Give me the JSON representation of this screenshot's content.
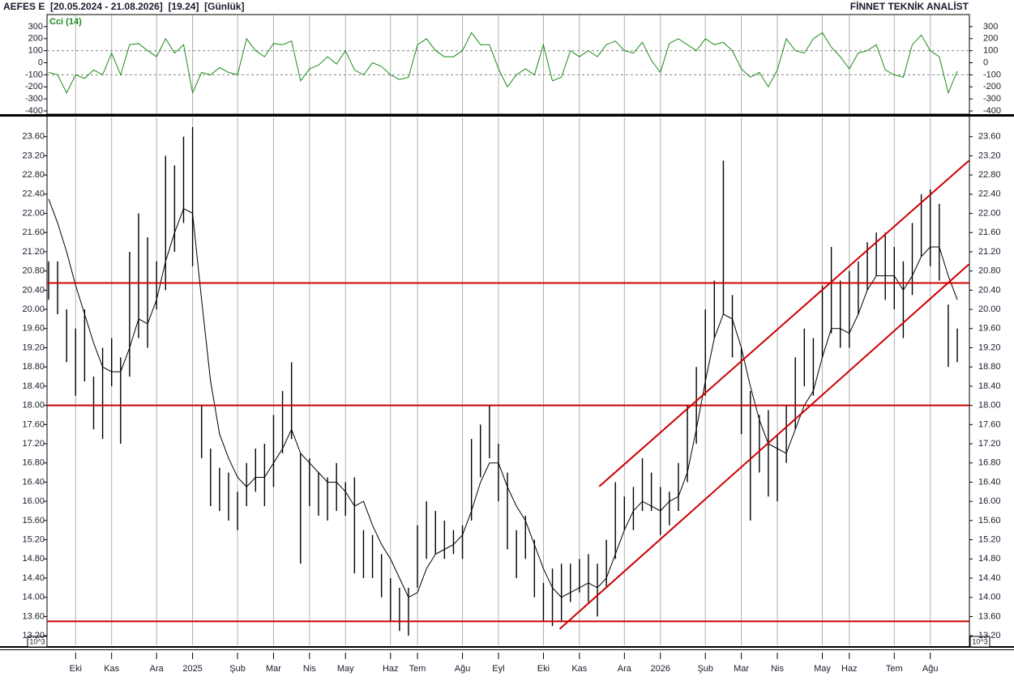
{
  "header": {
    "title": "AEFES E  [20.05.2024 - 21.08.2026]  [19.24]  [Günlük]",
    "brand": "FİNNET TEKNİK ANALİST",
    "scale_note": "10^3"
  },
  "chart_data": [
    {
      "type": "line",
      "label": "Cci (14)",
      "color": "#1a8c1a",
      "ylim": [
        -420,
        400
      ],
      "yticks": [
        300,
        200,
        100,
        0,
        -100,
        -200,
        -300,
        -400
      ],
      "reference_lines": [
        100,
        -100
      ],
      "values": [
        -80,
        -100,
        -250,
        -100,
        -130,
        -60,
        -100,
        80,
        -100,
        150,
        160,
        100,
        50,
        200,
        80,
        150,
        -250,
        -80,
        -100,
        -40,
        -80,
        -100,
        200,
        100,
        50,
        160,
        150,
        180,
        -150,
        -50,
        -20,
        50,
        -10,
        100,
        -60,
        -100,
        0,
        -30,
        -100,
        -140,
        -120,
        150,
        200,
        100,
        50,
        50,
        100,
        250,
        150,
        150,
        -50,
        -200,
        -100,
        -50,
        -100,
        150,
        -150,
        -120,
        100,
        50,
        100,
        50,
        150,
        180,
        100,
        80,
        170,
        20,
        -80,
        160,
        200,
        150,
        100,
        200,
        150,
        170,
        100,
        -50,
        -120,
        -80,
        -200,
        -60,
        200,
        100,
        80,
        200,
        250,
        130,
        50,
        -50,
        80,
        100,
        150,
        -60,
        -100,
        -120,
        150,
        230,
        100,
        50,
        -250,
        -70
      ]
    },
    {
      "type": "range-bar",
      "color": "#000000",
      "line_color": "#cc0000",
      "ylim": [
        13.0,
        24.0
      ],
      "yticks": [
        {
          "value": 13.2,
          "label": "13.20"
        },
        {
          "value": 13.6,
          "label": "13.60"
        },
        {
          "value": 14.0,
          "label": "14.00"
        },
        {
          "value": 14.4,
          "label": "14.40"
        },
        {
          "value": 14.8,
          "label": "14.80"
        },
        {
          "value": 15.2,
          "label": "15.20"
        },
        {
          "value": 15.6,
          "label": "15.60"
        },
        {
          "value": 16.0,
          "label": "16.00"
        },
        {
          "value": 16.4,
          "label": "16.40"
        },
        {
          "value": 16.8,
          "label": "16.80"
        },
        {
          "value": 17.2,
          "label": "17.20"
        },
        {
          "value": 17.6,
          "label": "17.60"
        },
        {
          "value": 18.0,
          "label": "18.00"
        },
        {
          "value": 18.4,
          "label": "18.40"
        },
        {
          "value": 18.8,
          "label": "18.80"
        },
        {
          "value": 19.2,
          "label": "19.20"
        },
        {
          "value": 19.6,
          "label": "19.60"
        },
        {
          "value": 20.0,
          "label": "20.00"
        },
        {
          "value": 20.4,
          "label": "20.40"
        },
        {
          "value": 20.8,
          "label": "20.80"
        },
        {
          "value": 21.2,
          "label": "21.20"
        },
        {
          "value": 21.6,
          "label": "21.60"
        },
        {
          "value": 22.0,
          "label": "22.00"
        },
        {
          "value": 22.4,
          "label": "22.40"
        },
        {
          "value": 22.8,
          "label": "22.80"
        },
        {
          "value": 23.2,
          "label": "23.20"
        },
        {
          "value": 23.6,
          "label": "23.60"
        }
      ],
      "categories": [
        null,
        null,
        null,
        "Eki",
        null,
        null,
        null,
        "Kas",
        null,
        null,
        null,
        null,
        "Ara",
        null,
        null,
        null,
        "2025",
        null,
        null,
        null,
        null,
        "Şub",
        null,
        null,
        null,
        "Mar",
        null,
        null,
        null,
        "Nis",
        null,
        null,
        null,
        "May",
        null,
        null,
        null,
        null,
        "Haz",
        null,
        null,
        "Tem",
        null,
        null,
        null,
        null,
        "Ağu",
        null,
        null,
        null,
        "Eyl",
        null,
        null,
        null,
        null,
        "Eki",
        null,
        null,
        null,
        "Kas",
        null,
        null,
        null,
        null,
        "Ara",
        null,
        null,
        null,
        "2026",
        null,
        null,
        null,
        null,
        "Şub",
        null,
        null,
        null,
        "Mar",
        null,
        null,
        null,
        "Nis",
        null,
        null,
        null,
        null,
        "May",
        null,
        null,
        "Haz",
        null,
        null,
        null,
        null,
        "Tem",
        null,
        null,
        null,
        "Ağu",
        null,
        null,
        null
      ],
      "high": [
        21.0,
        21.0,
        20.0,
        19.6,
        20.0,
        18.6,
        19.2,
        19.4,
        19.0,
        21.2,
        22.0,
        21.5,
        21.0,
        23.2,
        23.0,
        23.6,
        23.8,
        18.0,
        17.1,
        16.7,
        16.6,
        16.2,
        16.8,
        17.1,
        17.2,
        17.8,
        18.3,
        18.9,
        17.0,
        16.9,
        16.6,
        16.5,
        16.8,
        16.4,
        16.5,
        15.4,
        15.3,
        14.9,
        14.4,
        14.2,
        14.2,
        15.5,
        16.0,
        15.8,
        15.6,
        15.4,
        15.5,
        17.3,
        17.6,
        18.0,
        17.2,
        16.6,
        15.4,
        15.7,
        15.2,
        14.3,
        14.6,
        14.7,
        14.7,
        14.8,
        14.9,
        14.7,
        15.2,
        16.4,
        16.1,
        16.3,
        16.9,
        16.6,
        16.3,
        16.2,
        16.8,
        18.0,
        18.8,
        20.0,
        20.6,
        23.1,
        20.3,
        19.2,
        18.3,
        17.8,
        17.9,
        17.4,
        18.0,
        19.0,
        19.6,
        19.4,
        20.5,
        21.3,
        20.6,
        20.8,
        21.0,
        21.4,
        21.6,
        21.6,
        21.3,
        21.0,
        21.8,
        22.4,
        22.5,
        22.2,
        20.1,
        19.6
      ],
      "low": [
        20.2,
        19.9,
        18.9,
        18.2,
        18.5,
        17.5,
        17.3,
        18.4,
        17.2,
        18.6,
        19.4,
        19.2,
        20.0,
        20.4,
        21.2,
        21.8,
        20.9,
        16.9,
        15.9,
        15.8,
        15.6,
        15.4,
        15.9,
        16.2,
        15.9,
        16.3,
        17.0,
        17.3,
        14.7,
        15.9,
        15.7,
        15.6,
        15.8,
        15.7,
        14.5,
        14.4,
        14.4,
        14.0,
        13.5,
        13.3,
        13.2,
        14.2,
        14.8,
        14.9,
        14.8,
        14.9,
        14.8,
        15.6,
        16.5,
        16.9,
        16.0,
        15.0,
        14.4,
        14.8,
        14.0,
        13.5,
        13.4,
        13.5,
        13.9,
        14.1,
        13.9,
        13.6,
        14.2,
        14.8,
        15.4,
        15.4,
        15.8,
        15.8,
        15.3,
        15.5,
        15.8,
        16.4,
        17.2,
        18.2,
        19.4,
        19.9,
        19.0,
        17.4,
        15.6,
        16.6,
        16.1,
        16.0,
        16.8,
        17.5,
        18.4,
        18.2,
        19.0,
        19.5,
        19.2,
        19.2,
        19.9,
        20.4,
        20.7,
        20.2,
        20.0,
        19.4,
        20.3,
        21.1,
        20.9,
        20.6,
        18.8,
        18.9
      ],
      "moving_average": [
        22.3,
        21.8,
        21.2,
        20.5,
        19.9,
        19.3,
        18.8,
        18.7,
        18.7,
        19.2,
        19.8,
        19.7,
        20.2,
        21.0,
        21.6,
        22.1,
        22.0,
        20.2,
        18.5,
        17.4,
        16.9,
        16.5,
        16.3,
        16.5,
        16.5,
        16.8,
        17.1,
        17.5,
        17.0,
        16.8,
        16.6,
        16.4,
        16.4,
        16.2,
        15.9,
        16.0,
        15.5,
        15.1,
        14.8,
        14.4,
        14.0,
        14.1,
        14.6,
        14.9,
        15.0,
        15.1,
        15.3,
        15.8,
        16.4,
        16.8,
        16.8,
        16.3,
        15.9,
        15.6,
        15.1,
        14.6,
        14.2,
        14.0,
        14.1,
        14.2,
        14.3,
        14.2,
        14.4,
        14.9,
        15.4,
        15.8,
        16.0,
        15.9,
        15.8,
        16.0,
        16.1,
        16.6,
        17.5,
        18.5,
        19.4,
        19.9,
        19.8,
        19.2,
        18.4,
        17.7,
        17.2,
        17.1,
        17.0,
        17.5,
        18.0,
        18.3,
        19.0,
        19.6,
        19.6,
        19.5,
        19.9,
        20.4,
        20.7,
        20.7,
        20.7,
        20.4,
        20.7,
        21.1,
        21.3,
        21.3,
        20.7,
        20.2
      ],
      "horizontal_lines": [
        20.55,
        18.0,
        13.5
      ],
      "trend_lines": [
        {
          "from": [
            61.2,
            16.31
          ],
          "to": [
            102.3,
            23.1
          ]
        },
        {
          "from": [
            56.8,
            13.34
          ],
          "to": [
            102.3,
            20.94
          ]
        }
      ]
    }
  ]
}
